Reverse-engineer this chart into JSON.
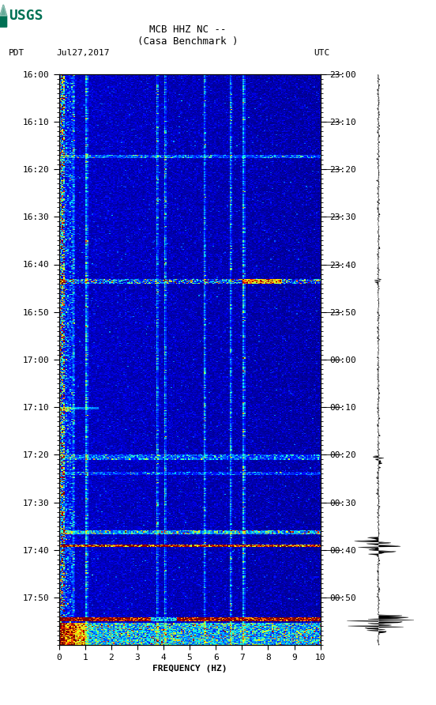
{
  "title_line1": "MCB HHZ NC --",
  "title_line2": "(Casa Benchmark )",
  "label_left": "PDT",
  "label_date": "Jul27,2017",
  "label_right": "UTC",
  "freq_label": "FREQUENCY (HZ)",
  "time_ticks_left": [
    "16:00",
    "16:10",
    "16:20",
    "16:30",
    "16:40",
    "16:50",
    "17:00",
    "17:10",
    "17:20",
    "17:30",
    "17:40",
    "17:50"
  ],
  "time_ticks_right": [
    "23:00",
    "23:10",
    "23:20",
    "23:30",
    "23:40",
    "23:50",
    "00:00",
    "00:10",
    "00:20",
    "00:30",
    "00:40",
    "00:50"
  ],
  "freq_ticks": [
    0,
    1,
    2,
    3,
    4,
    5,
    6,
    7,
    8,
    9,
    10
  ],
  "n_time": 660,
  "n_freq": 200,
  "background_color": "#ffffff",
  "spectrogram_cmap": "jet",
  "usgs_green": "#007054",
  "font_size_title": 9,
  "font_size_labels": 8,
  "font_size_axis": 8
}
